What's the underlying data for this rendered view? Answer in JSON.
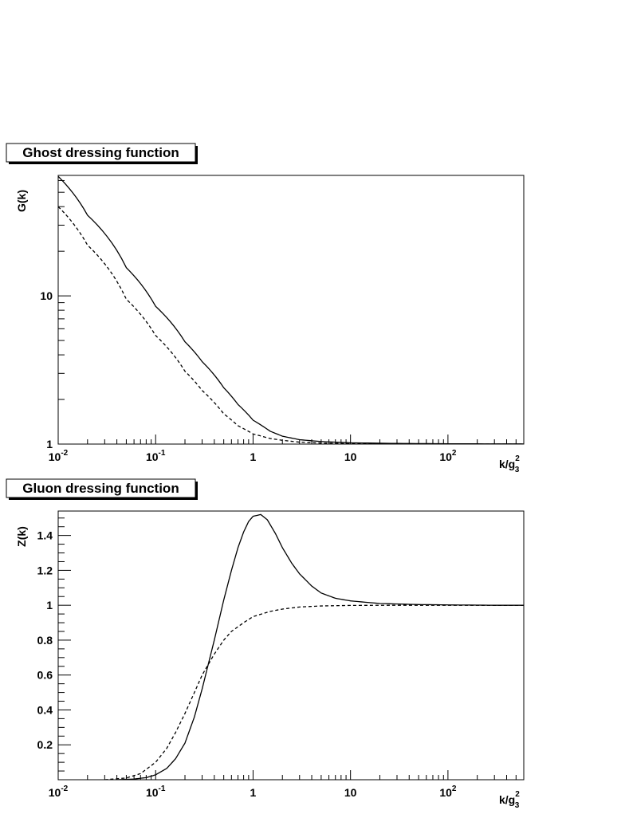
{
  "chart_data": [
    {
      "type": "line",
      "title": "Ghost dressing function",
      "ylabel": "G(k)",
      "xlabel": "k/g_3^2",
      "xlabel_parts": {
        "base": "k/g",
        "sup": "2",
        "sub": "3"
      },
      "xscale": "log",
      "yscale": "log",
      "xlim": [
        0.01,
        600
      ],
      "ylim": [
        1,
        65
      ],
      "x_tick_labels": [
        {
          "value": 0.01,
          "base": "10",
          "exp": "-2"
        },
        {
          "value": 0.1,
          "base": "10",
          "exp": "-1"
        },
        {
          "value": 1,
          "base": "1",
          "exp": ""
        },
        {
          "value": 10,
          "base": "10",
          "exp": ""
        },
        {
          "value": 100,
          "base": "10",
          "exp": "2"
        }
      ],
      "y_tick_labels": [
        {
          "value": 1,
          "label": "1"
        },
        {
          "value": 10,
          "label": "10"
        }
      ],
      "series": [
        {
          "style": "solid",
          "x": [
            0.01,
            0.02,
            0.05,
            0.1,
            0.2,
            0.3,
            0.5,
            0.7,
            1,
            1.5,
            2,
            3,
            5,
            10,
            30,
            100,
            300,
            600
          ],
          "y": [
            64,
            35,
            15.5,
            8.5,
            4.9,
            3.6,
            2.4,
            1.85,
            1.45,
            1.22,
            1.13,
            1.07,
            1.04,
            1.02,
            1.01,
            1.005,
            1.003,
            1.002
          ]
        },
        {
          "style": "dashed",
          "x": [
            0.01,
            0.02,
            0.05,
            0.1,
            0.2,
            0.3,
            0.5,
            0.7,
            1,
            1.5,
            2,
            3,
            5,
            10,
            30,
            100,
            300,
            600
          ],
          "y": [
            40,
            22,
            9.5,
            5.4,
            3.1,
            2.3,
            1.6,
            1.33,
            1.17,
            1.09,
            1.06,
            1.03,
            1.015,
            1.007,
            1.003,
            1.001,
            1.0,
            1.0
          ]
        }
      ]
    },
    {
      "type": "line",
      "title": "Gluon dressing function",
      "ylabel": "Z(k)",
      "xlabel": "k/g_3^2",
      "xlabel_parts": {
        "base": "k/g",
        "sup": "2",
        "sub": "3"
      },
      "xscale": "log",
      "yscale": "linear",
      "xlim": [
        0.01,
        600
      ],
      "ylim": [
        0,
        1.54
      ],
      "x_tick_labels": [
        {
          "value": 0.01,
          "base": "10",
          "exp": "-2"
        },
        {
          "value": 0.1,
          "base": "10",
          "exp": "-1"
        },
        {
          "value": 1,
          "base": "1",
          "exp": ""
        },
        {
          "value": 10,
          "base": "10",
          "exp": ""
        },
        {
          "value": 100,
          "base": "10",
          "exp": "2"
        }
      ],
      "y_tick_labels": [
        {
          "value": 0.2,
          "label": "0.2"
        },
        {
          "value": 0.4,
          "label": "0.4"
        },
        {
          "value": 0.6,
          "label": "0.6"
        },
        {
          "value": 0.8,
          "label": "0.8"
        },
        {
          "value": 1.0,
          "label": "1"
        },
        {
          "value": 1.2,
          "label": "1.2"
        },
        {
          "value": 1.4,
          "label": "1.4"
        }
      ],
      "series": [
        {
          "style": "solid",
          "x": [
            0.04,
            0.06,
            0.08,
            0.1,
            0.13,
            0.16,
            0.2,
            0.25,
            0.3,
            0.4,
            0.5,
            0.6,
            0.7,
            0.8,
            0.9,
            1.0,
            1.2,
            1.4,
            1.7,
            2,
            2.5,
            3,
            4,
            5,
            7,
            10,
            20,
            50,
            100,
            300,
            600
          ],
          "y": [
            0.0,
            0.004,
            0.012,
            0.028,
            0.065,
            0.12,
            0.21,
            0.36,
            0.52,
            0.8,
            1.03,
            1.2,
            1.33,
            1.42,
            1.48,
            1.51,
            1.52,
            1.49,
            1.41,
            1.33,
            1.24,
            1.18,
            1.11,
            1.07,
            1.04,
            1.025,
            1.01,
            1.004,
            1.002,
            1.0,
            1.0
          ]
        },
        {
          "style": "dashed",
          "x": [
            0.03,
            0.05,
            0.07,
            0.1,
            0.13,
            0.16,
            0.2,
            0.25,
            0.3,
            0.4,
            0.5,
            0.6,
            0.8,
            1.0,
            1.5,
            2,
            3,
            5,
            10,
            30,
            100,
            600
          ],
          "y": [
            0.0,
            0.01,
            0.035,
            0.1,
            0.18,
            0.27,
            0.38,
            0.5,
            0.6,
            0.72,
            0.8,
            0.85,
            0.9,
            0.935,
            0.965,
            0.978,
            0.99,
            0.996,
            0.999,
            1.0,
            1.0,
            1.0
          ]
        }
      ]
    }
  ]
}
